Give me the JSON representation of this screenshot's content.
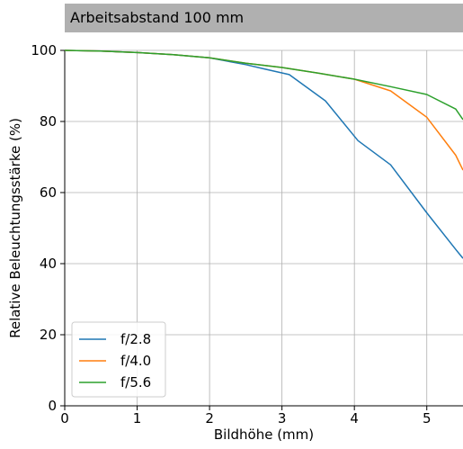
{
  "chart_data": {
    "type": "line",
    "title": "Arbeitsabstand 100 mm",
    "xlabel": "Bildhöhe (mm)",
    "ylabel": "Relative Beleuchtungsstärke (%)",
    "xlim": [
      0,
      5.5
    ],
    "ylim": [
      0,
      100
    ],
    "xticks": [
      0,
      1,
      2,
      3,
      4,
      5
    ],
    "yticks": [
      0,
      20,
      40,
      60,
      80,
      100
    ],
    "grid": true,
    "legend_position": "bottom-left",
    "series": [
      {
        "name": "f/2.8",
        "color": "#1f77b4",
        "x": [
          0,
          0.5,
          1.0,
          1.5,
          2.0,
          2.5,
          2.75,
          3.1,
          3.6,
          4.05,
          4.5,
          5.0,
          5.4,
          5.5
        ],
        "y": [
          100,
          99.8,
          99.4,
          98.8,
          97.9,
          96.0,
          94.8,
          93.2,
          85.8,
          74.6,
          67.8,
          54.3,
          44.0,
          41.5
        ]
      },
      {
        "name": "f/4.0",
        "color": "#ff7f0e",
        "x": [
          0,
          0.5,
          1.0,
          1.5,
          2.0,
          2.5,
          3.0,
          3.5,
          4.0,
          4.5,
          5.0,
          5.4,
          5.5
        ],
        "y": [
          100,
          99.8,
          99.4,
          98.8,
          97.9,
          96.4,
          95.2,
          93.6,
          91.9,
          88.6,
          81.2,
          70.5,
          66.3
        ]
      },
      {
        "name": "f/5.6",
        "color": "#2ca02c",
        "x": [
          0,
          0.5,
          1.0,
          1.5,
          2.0,
          2.5,
          3.0,
          3.5,
          4.0,
          4.5,
          5.0,
          5.4,
          5.5
        ],
        "y": [
          100,
          99.8,
          99.4,
          98.8,
          97.9,
          96.4,
          95.2,
          93.6,
          91.9,
          89.8,
          87.6,
          83.5,
          80.5
        ]
      }
    ]
  }
}
